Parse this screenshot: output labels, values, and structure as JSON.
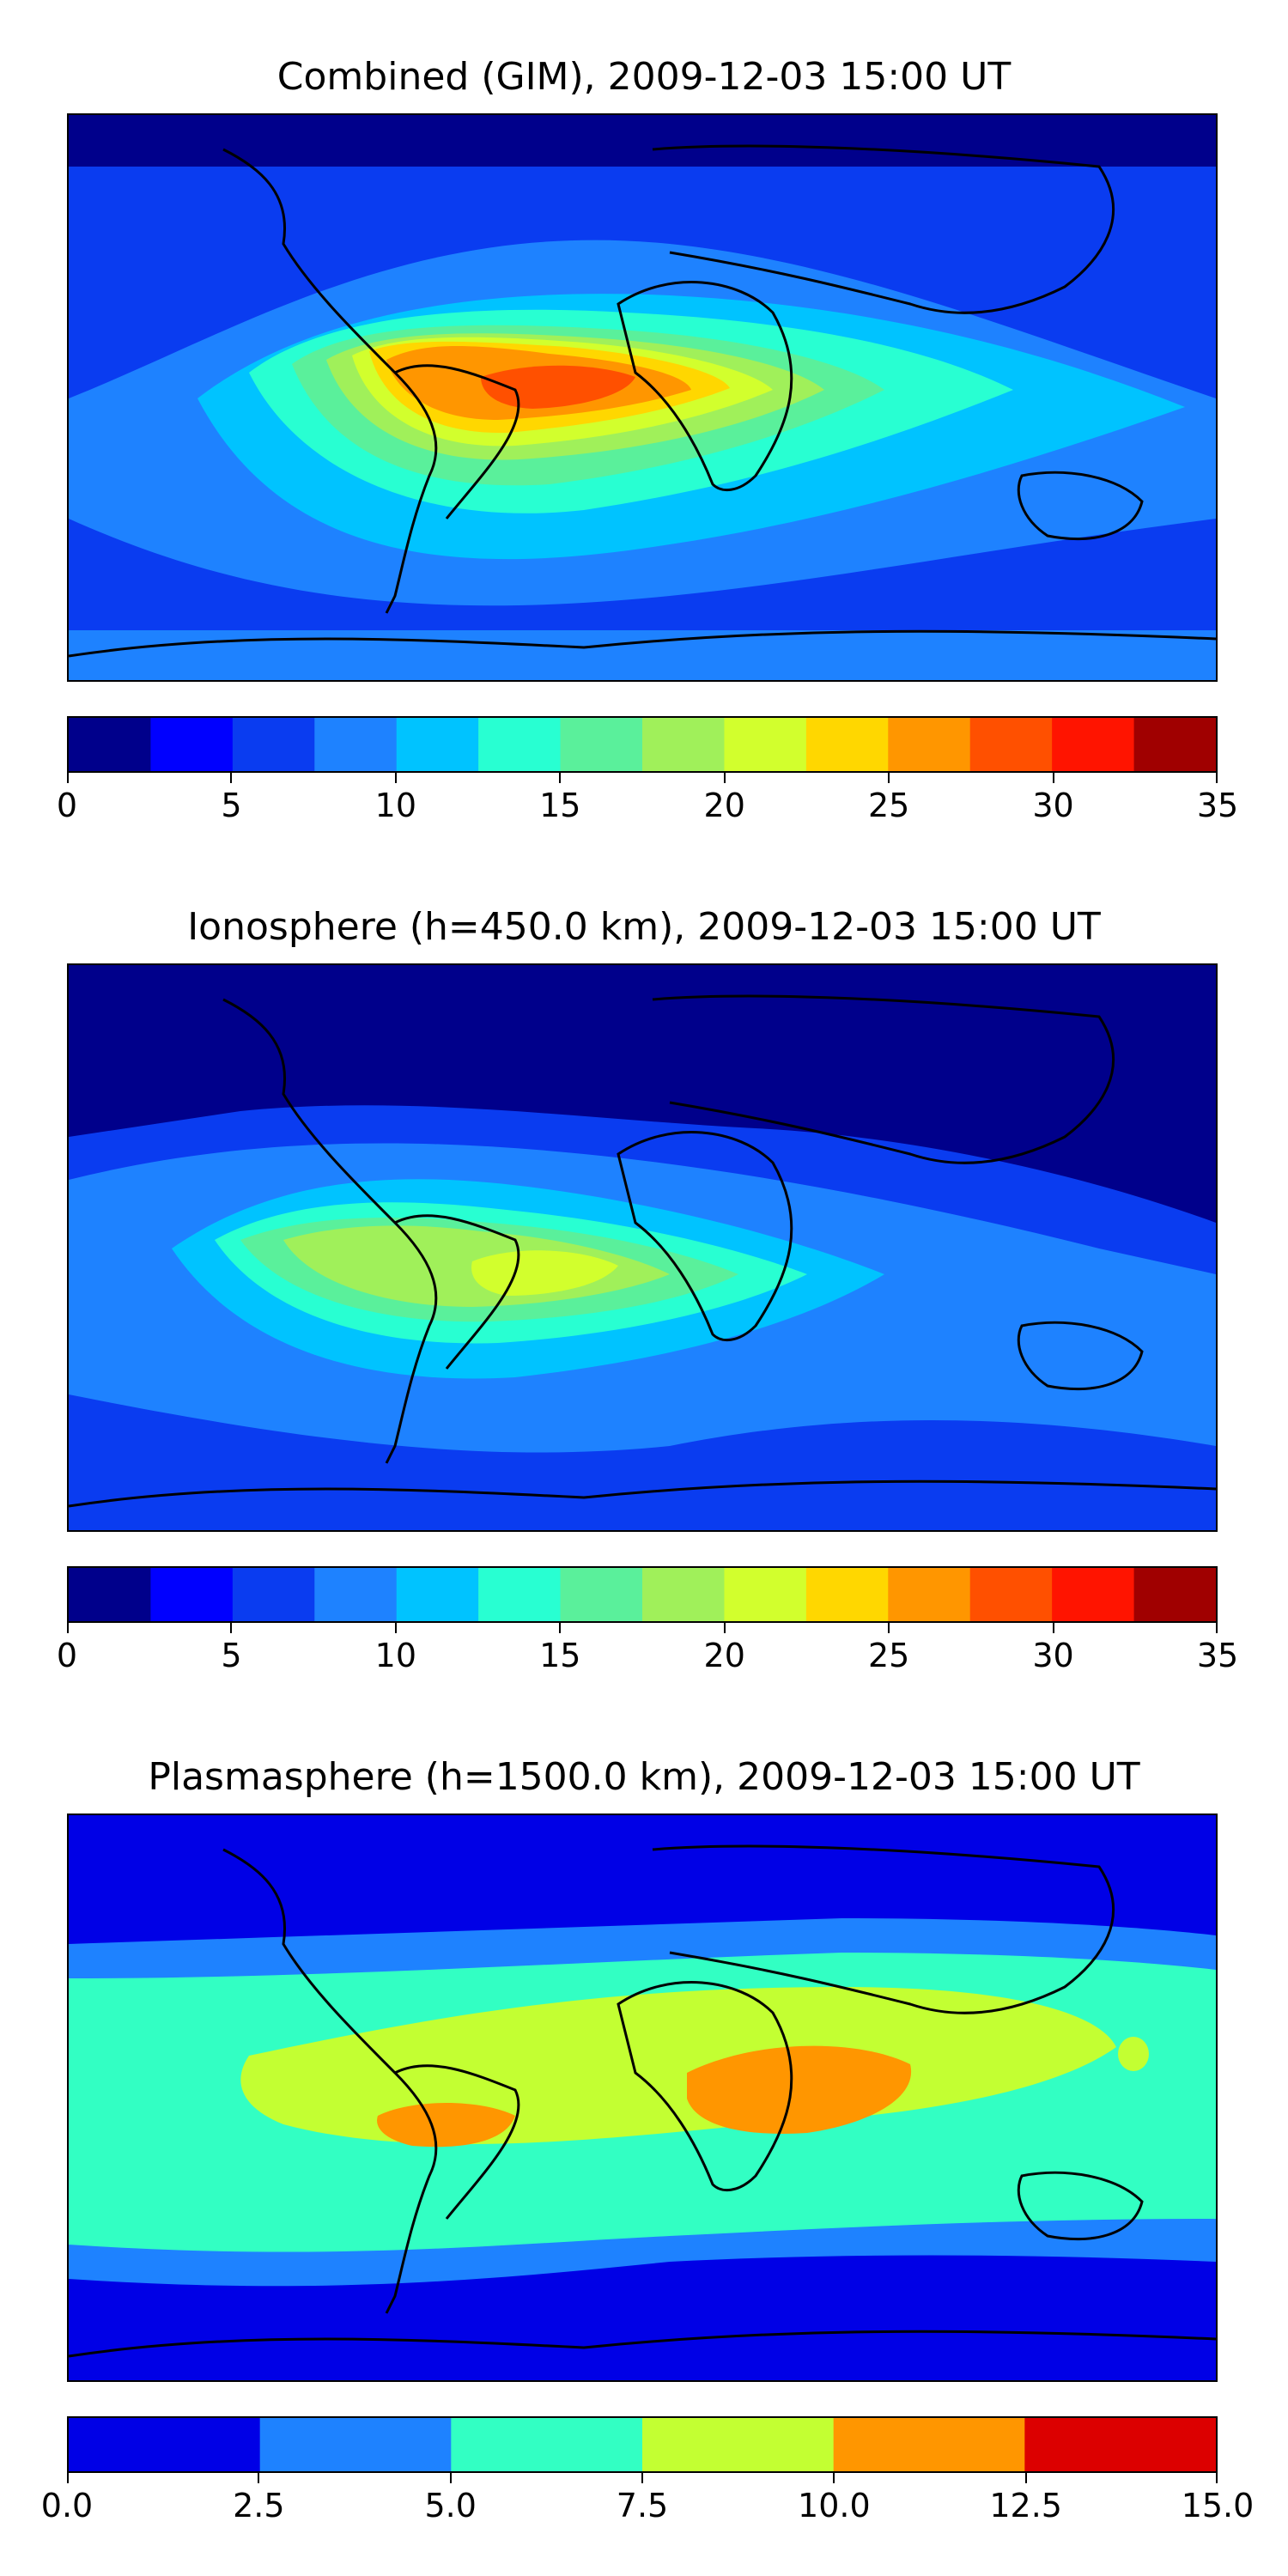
{
  "panels": [
    {
      "title": "Combined (GIM), 2009-12-03 15:00 UT",
      "colorbar": {
        "colors": [
          "#00008b",
          "#0000ff",
          "#0a3cf0",
          "#1e82ff",
          "#00c3ff",
          "#28ffd2",
          "#5af09b",
          "#a0f05a",
          "#d2ff2d",
          "#ffd700",
          "#ff9600",
          "#ff5000",
          "#ff1400",
          "#a00000"
        ],
        "ticks": [
          "0",
          "5",
          "10",
          "15",
          "20",
          "25",
          "30",
          "35"
        ],
        "tick_values": [
          0,
          5,
          10,
          15,
          20,
          25,
          30,
          35
        ],
        "range": [
          0,
          35
        ]
      }
    },
    {
      "title": "Ionosphere  (h=450.0 km), 2009-12-03 15:00 UT",
      "colorbar": {
        "colors": [
          "#00008b",
          "#0000ff",
          "#0a3cf0",
          "#1e82ff",
          "#00c3ff",
          "#28ffd2",
          "#5af09b",
          "#a0f05a",
          "#d2ff2d",
          "#ffd700",
          "#ff9600",
          "#ff5000",
          "#ff1400",
          "#a00000"
        ],
        "ticks": [
          "0",
          "5",
          "10",
          "15",
          "20",
          "25",
          "30",
          "35"
        ],
        "tick_values": [
          0,
          5,
          10,
          15,
          20,
          25,
          30,
          35
        ],
        "range": [
          0,
          35
        ]
      }
    },
    {
      "title": "Plasmasphere (h=1500.0 km), 2009-12-03 15:00 UT",
      "colorbar": {
        "colors": [
          "#0000e6",
          "#1e82ff",
          "#32ffc3",
          "#c3ff32",
          "#ff9600",
          "#dc0000"
        ],
        "ticks": [
          "0.0",
          "2.5",
          "5.0",
          "7.5",
          "10.0",
          "12.5",
          "15.0"
        ],
        "tick_values": [
          0,
          2.5,
          5,
          7.5,
          10,
          12.5,
          15
        ],
        "range": [
          0,
          15
        ]
      }
    }
  ]
}
